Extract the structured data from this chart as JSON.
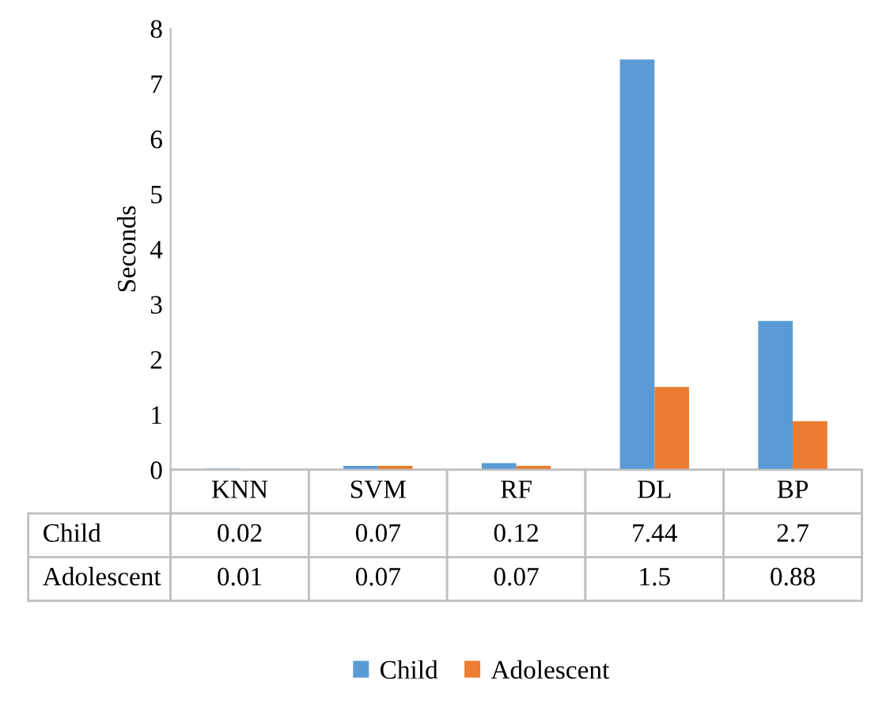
{
  "chart_data": {
    "type": "bar",
    "ylabel": "Seconds",
    "categories": [
      "KNN",
      "SVM",
      "RF",
      "DL",
      "BP"
    ],
    "series": [
      {
        "name": "Child",
        "color": "#5b9bd5",
        "values": [
          0.02,
          0.07,
          0.12,
          7.44,
          2.7
        ]
      },
      {
        "name": "Adolescent",
        "color": "#ed7d31",
        "values": [
          0.01,
          0.07,
          0.07,
          1.5,
          0.88
        ]
      }
    ],
    "ylim": [
      0,
      8
    ],
    "yticks": [
      0,
      1,
      2,
      3,
      4,
      5,
      6,
      7,
      8
    ],
    "grid": false,
    "legend": "bottom",
    "data_labels": true
  }
}
